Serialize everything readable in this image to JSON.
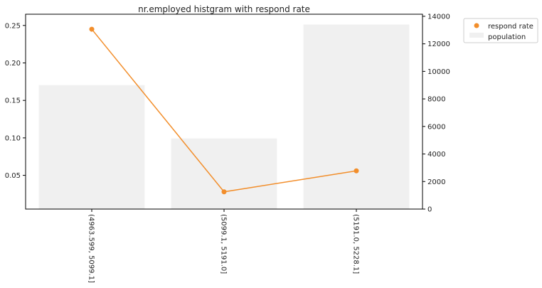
{
  "chart_data": {
    "type": "bar",
    "title": "nr.employed histgram with respond rate",
    "categories": [
      "(4963.599, 5099.1]",
      "(5099.1, 5191.0]",
      "(5191.0, 5228.1]"
    ],
    "series": [
      {
        "name": "population",
        "type": "bar",
        "axis": "right",
        "values": [
          9000,
          5130,
          13400
        ],
        "color": "#f0f0f0"
      },
      {
        "name": "respond rate",
        "type": "line",
        "axis": "left",
        "values": [
          0.245,
          0.028,
          0.056
        ],
        "color": "#f28e2b"
      }
    ],
    "y_left": {
      "lim": [
        0.005,
        0.265
      ],
      "ticks": [
        0.05,
        0.1,
        0.15,
        0.2,
        0.25
      ],
      "tick_labels": [
        "0.05",
        "0.10",
        "0.15",
        "0.20",
        "0.25"
      ]
    },
    "y_right": {
      "lim": [
        0,
        14150
      ],
      "ticks": [
        0,
        2000,
        4000,
        6000,
        8000,
        10000,
        12000,
        14000
      ],
      "tick_labels": [
        "0",
        "2000",
        "4000",
        "6000",
        "8000",
        "10000",
        "12000",
        "14000"
      ]
    },
    "legend": {
      "placement": "outside-top-right",
      "entries": [
        "respond rate",
        "population"
      ]
    },
    "grid": false
  }
}
